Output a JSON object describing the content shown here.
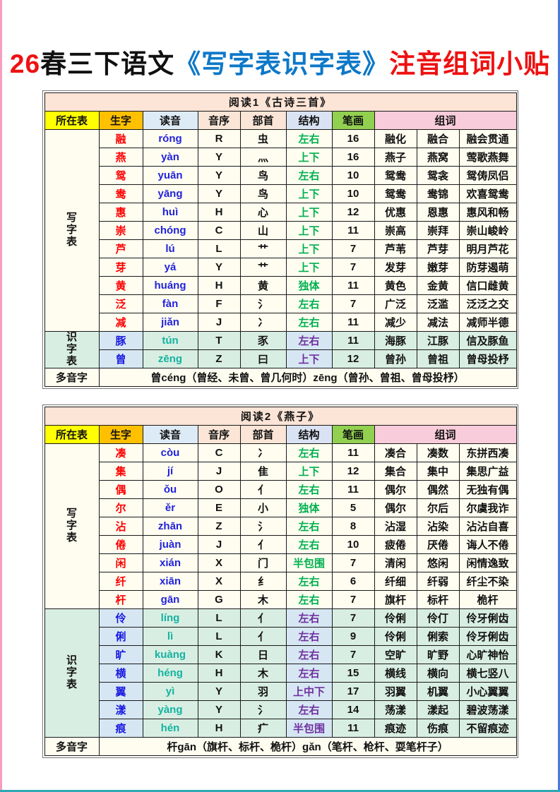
{
  "title": {
    "part1": "26",
    "part2": "春三下语文",
    "part3": "《写字表识字表》",
    "part4": "注音组词小贴"
  },
  "columns": [
    "所在表",
    "生字",
    "读音",
    "音序",
    "部首",
    "结构",
    "笔画",
    "组词"
  ],
  "section_labels": {
    "write": "写字表",
    "recognize": "识字表",
    "polyphone": "多音字"
  },
  "colors": {
    "title_red": "#ee1111",
    "title_blue": "#0d78c8",
    "table_title_bg": "#fce4d6",
    "table_title_text": "#fe0000",
    "header_yellow": "#ffff00",
    "header_gold": "#ffc000",
    "header_lightblue": "#ddebf7",
    "header_peach": "#fbe5d6",
    "header_lavender": "#dae3f3",
    "header_green": "#92d050",
    "header_pink": "#f8ccda",
    "write_row_bg": "#fefdf0",
    "recognize_row_bg": "#d9eee3",
    "recognize_blue_cell_bg": "#d6e7f3",
    "write_char": "#fe0000",
    "recognize_char": "#1a1ae0",
    "write_pinyin": "#2222dd",
    "recognize_pinyin": "#14b3a0",
    "write_structure": "#00b050",
    "recognize_structure": "#7030a0"
  },
  "tables": [
    {
      "title": "阅读1《古诗三首》",
      "rows": [
        {
          "section": "write",
          "character": "融",
          "pinyin": "róng",
          "initial": "R",
          "radical": "虫",
          "structure": "左右",
          "strokes": "16",
          "words": [
            "融化",
            "融合",
            "融会贯通"
          ]
        },
        {
          "section": "write",
          "character": "燕",
          "pinyin": "yàn",
          "initial": "Y",
          "radical": "灬",
          "structure": "上下",
          "strokes": "16",
          "words": [
            "燕子",
            "燕窝",
            "莺歌燕舞"
          ]
        },
        {
          "section": "write",
          "character": "鸳",
          "pinyin": "yuān",
          "initial": "Y",
          "radical": "鸟",
          "structure": "左右",
          "strokes": "10",
          "words": [
            "鸳鸯",
            "鸳衾",
            "鸳俦凤侣"
          ]
        },
        {
          "section": "write",
          "character": "鸯",
          "pinyin": "yāng",
          "initial": "Y",
          "radical": "鸟",
          "structure": "上下",
          "strokes": "10",
          "words": [
            "鸳鸯",
            "鸯锦",
            "欢喜鸳鸯"
          ]
        },
        {
          "section": "write",
          "character": "惠",
          "pinyin": "huì",
          "initial": "H",
          "radical": "心",
          "structure": "上下",
          "strokes": "12",
          "words": [
            "优惠",
            "恩惠",
            "惠风和畅"
          ]
        },
        {
          "section": "write",
          "character": "崇",
          "pinyin": "chóng",
          "initial": "C",
          "radical": "山",
          "structure": "上下",
          "strokes": "11",
          "words": [
            "崇高",
            "崇拜",
            "崇山峻岭"
          ]
        },
        {
          "section": "write",
          "character": "芦",
          "pinyin": "lú",
          "initial": "L",
          "radical": "艹",
          "structure": "上下",
          "strokes": "7",
          "words": [
            "芦苇",
            "芦芽",
            "明月芦花"
          ]
        },
        {
          "section": "write",
          "character": "芽",
          "pinyin": "yá",
          "initial": "Y",
          "radical": "艹",
          "structure": "上下",
          "strokes": "7",
          "words": [
            "发芽",
            "嫩芽",
            "防芽遏萌"
          ]
        },
        {
          "section": "write",
          "character": "黄",
          "pinyin": "huáng",
          "initial": "H",
          "radical": "黄",
          "structure": "独体",
          "strokes": "11",
          "words": [
            "黄色",
            "金黄",
            "信口雌黄"
          ]
        },
        {
          "section": "write",
          "character": "泛",
          "pinyin": "fàn",
          "initial": "F",
          "radical": "氵",
          "structure": "左右",
          "strokes": "7",
          "words": [
            "广泛",
            "泛滥",
            "泛泛之交"
          ]
        },
        {
          "section": "write",
          "character": "减",
          "pinyin": "jiǎn",
          "initial": "J",
          "radical": "冫",
          "structure": "左右",
          "strokes": "11",
          "words": [
            "减少",
            "减法",
            "减师半德"
          ]
        },
        {
          "section": "recognize",
          "character": "豚",
          "pinyin": "tún",
          "initial": "T",
          "radical": "豕",
          "structure": "左右",
          "strokes": "11",
          "words": [
            "海豚",
            "江豚",
            "信及豚鱼"
          ]
        },
        {
          "section": "recognize",
          "character": "曾",
          "pinyin": "zēng",
          "initial": "Z",
          "radical": "曰",
          "structure": "上下",
          "strokes": "12",
          "words": [
            "曾孙",
            "曾祖",
            "曾母投杼"
          ]
        }
      ],
      "polyphone": "曾céng（曾经、未曾、曾几何时）zēng（曾孙、曾祖、曾母投杼）"
    },
    {
      "title": "阅读2《燕子》",
      "rows": [
        {
          "section": "write",
          "character": "凑",
          "pinyin": "còu",
          "initial": "C",
          "radical": "冫",
          "structure": "左右",
          "strokes": "11",
          "words": [
            "凑合",
            "凑数",
            "东拼西凑"
          ]
        },
        {
          "section": "write",
          "character": "集",
          "pinyin": "jí",
          "initial": "J",
          "radical": "隹",
          "structure": "上下",
          "strokes": "12",
          "words": [
            "集合",
            "集中",
            "集思广益"
          ]
        },
        {
          "section": "write",
          "character": "偶",
          "pinyin": "ǒu",
          "initial": "O",
          "radical": "亻",
          "structure": "左右",
          "strokes": "11",
          "words": [
            "偶尔",
            "偶然",
            "无独有偶"
          ]
        },
        {
          "section": "write",
          "character": "尔",
          "pinyin": "ěr",
          "initial": "E",
          "radical": "小",
          "structure": "独体",
          "strokes": "5",
          "words": [
            "偶尔",
            "尔后",
            "尔虞我诈"
          ]
        },
        {
          "section": "write",
          "character": "沾",
          "pinyin": "zhān",
          "initial": "Z",
          "radical": "氵",
          "structure": "左右",
          "strokes": "8",
          "words": [
            "沾湿",
            "沾染",
            "沾沾自喜"
          ]
        },
        {
          "section": "write",
          "character": "倦",
          "pinyin": "juàn",
          "initial": "J",
          "radical": "亻",
          "structure": "左右",
          "strokes": "10",
          "words": [
            "疲倦",
            "厌倦",
            "诲人不倦"
          ]
        },
        {
          "section": "write",
          "character": "闲",
          "pinyin": "xián",
          "initial": "X",
          "radical": "门",
          "structure": "半包围",
          "strokes": "7",
          "words": [
            "清闲",
            "悠闲",
            "闲情逸致"
          ]
        },
        {
          "section": "write",
          "character": "纤",
          "pinyin": "xiān",
          "initial": "X",
          "radical": "纟",
          "structure": "左右",
          "strokes": "6",
          "words": [
            "纤细",
            "纤弱",
            "纤尘不染"
          ]
        },
        {
          "section": "write",
          "character": "杆",
          "pinyin": "gān",
          "initial": "G",
          "radical": "木",
          "structure": "左右",
          "strokes": "7",
          "words": [
            "旗杆",
            "标杆",
            "桅杆"
          ]
        },
        {
          "section": "recognize",
          "character": "伶",
          "pinyin": "líng",
          "initial": "L",
          "radical": "亻",
          "structure": "左右",
          "strokes": "7",
          "words": [
            "伶俐",
            "伶仃",
            "伶牙俐齿"
          ]
        },
        {
          "section": "recognize",
          "character": "俐",
          "pinyin": "lì",
          "initial": "L",
          "radical": "亻",
          "structure": "左右",
          "strokes": "9",
          "words": [
            "伶俐",
            "俐索",
            "伶牙俐齿"
          ]
        },
        {
          "section": "recognize",
          "character": "旷",
          "pinyin": "kuàng",
          "initial": "K",
          "radical": "日",
          "structure": "左右",
          "strokes": "7",
          "words": [
            "空旷",
            "旷野",
            "心旷神怡"
          ]
        },
        {
          "section": "recognize",
          "character": "横",
          "pinyin": "héng",
          "initial": "H",
          "radical": "木",
          "structure": "左右",
          "strokes": "15",
          "words": [
            "横线",
            "横向",
            "横七竖八"
          ]
        },
        {
          "section": "recognize",
          "character": "翼",
          "pinyin": "yì",
          "initial": "Y",
          "radical": "羽",
          "structure": "上中下",
          "strokes": "17",
          "words": [
            "羽翼",
            "机翼",
            "小心翼翼"
          ]
        },
        {
          "section": "recognize",
          "character": "漾",
          "pinyin": "yàng",
          "initial": "Y",
          "radical": "氵",
          "structure": "左右",
          "strokes": "14",
          "words": [
            "荡漾",
            "漾起",
            "碧波荡漾"
          ]
        },
        {
          "section": "recognize",
          "character": "痕",
          "pinyin": "hén",
          "initial": "H",
          "radical": "疒",
          "structure": "半包围",
          "strokes": "11",
          "words": [
            "痕迹",
            "伤痕",
            "不留痕迹"
          ]
        }
      ],
      "polyphone": "杆gān（旗杆、标杆、桅杆）gǎn（笔杆、枪杆、耍笔杆子）"
    }
  ]
}
